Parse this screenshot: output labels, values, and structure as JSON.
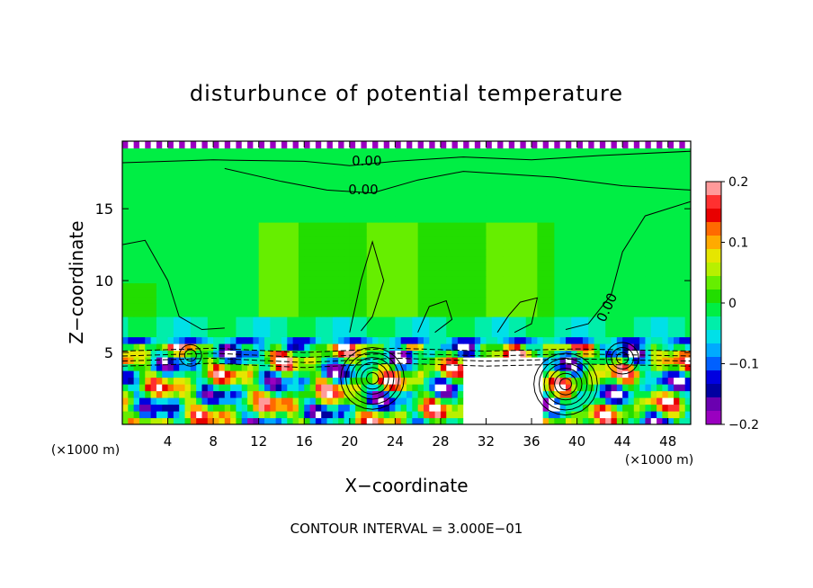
{
  "chart_data": {
    "type": "heatmap",
    "title": "disturbunce of potential temperature",
    "xlabel": "X−coordinate",
    "ylabel": "Z−coordinate",
    "x_unit_label": "(×1000 m)",
    "y_unit_label": "(×1000 m)",
    "footer": "CONTOUR INTERVAL = 3.000E−01",
    "xlim": [
      0,
      50
    ],
    "ylim": [
      0,
      19.7
    ],
    "x_ticks": [
      4,
      8,
      12,
      16,
      20,
      24,
      28,
      32,
      36,
      40,
      44,
      48
    ],
    "y_ticks": [
      5,
      10,
      15
    ],
    "contour_labels": [
      {
        "text": "0.00",
        "x": 21.5,
        "y": 18.0
      },
      {
        "text": "0.00",
        "x": 21.2,
        "y": 16.0
      },
      {
        "text": "0.00",
        "x": 43.0,
        "y": 8.0
      }
    ],
    "colorbar": {
      "range": [
        -0.2,
        0.2
      ],
      "tick_values": [
        0.2,
        0.1,
        0,
        -0.1,
        -0.2
      ],
      "tick_labels": [
        "0.2",
        "0.1",
        "0",
        "−0.1",
        "−0.2"
      ],
      "colors": [
        "#ff9a9a",
        "#ff3030",
        "#e80000",
        "#ff6a00",
        "#ffaa00",
        "#e6e600",
        "#b8f000",
        "#66ee00",
        "#22dd00",
        "#00ee44",
        "#00eeaa",
        "#00e0e8",
        "#00aaff",
        "#0060ff",
        "#0000e0",
        "#0000a0",
        "#6a00b0",
        "#9a00c0"
      ]
    },
    "regions": [
      {
        "name": "upper-field",
        "value": 0.0,
        "z_range": [
          6.0,
          19.7
        ],
        "x_range": [
          0,
          50
        ]
      },
      {
        "name": "upper-field-core",
        "value": 0.02,
        "z_range": [
          8.0,
          14.0
        ],
        "x_range": [
          12,
          38
        ]
      },
      {
        "name": "inversion-band",
        "value": -0.08,
        "z_range": [
          5.5,
          6.3
        ],
        "x_range": [
          0,
          50
        ]
      },
      {
        "name": "lower-turbulent-layer",
        "value_range": [
          -0.2,
          0.2
        ],
        "z_range": [
          0,
          5.5
        ],
        "x_range": [
          0,
          50
        ]
      }
    ]
  }
}
